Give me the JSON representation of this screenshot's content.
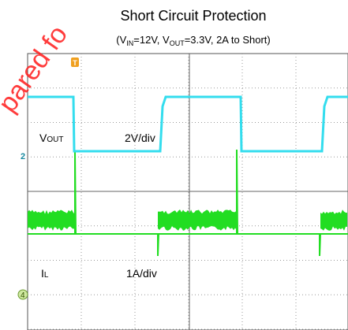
{
  "header": {
    "title": "Short Circuit Protection",
    "subtitle": [
      "(V",
      "IN",
      "=12V, V",
      "OUT",
      "=3.3V, 2A to Short)"
    ]
  },
  "watermark": "pared fo",
  "labels": {
    "vout": [
      "V",
      "OUT"
    ],
    "vout_scale": "2V/div",
    "il": [
      "I",
      "L"
    ],
    "il_scale": "1A/div"
  },
  "markers": {
    "ch2": "2",
    "ch4": "4",
    "trigger": "T"
  }
}
